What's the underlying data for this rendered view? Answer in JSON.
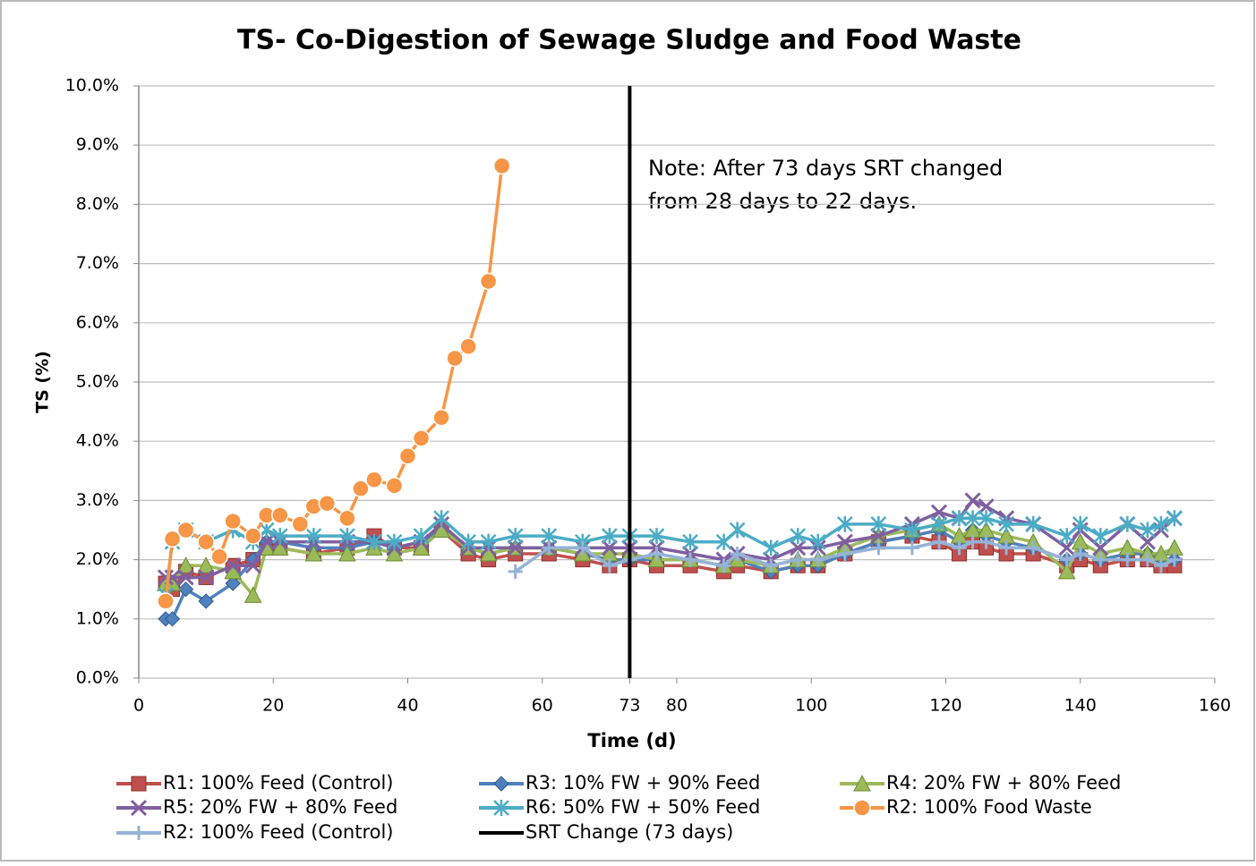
{
  "chart_data": {
    "type": "line",
    "title": "TS- Co-Digestion of Sewage Sludge and Food Waste",
    "xlabel": "Time (d)",
    "ylabel": "TS (%)",
    "annotations": [
      "Note: After 73 days SRT changed",
      "from 28 days to 22 days."
    ],
    "xlim": [
      0,
      160
    ],
    "xticks": [
      0,
      20,
      40,
      60,
      73,
      80,
      100,
      120,
      140,
      160
    ],
    "ylim": [
      0,
      10
    ],
    "yticks": [
      {
        "value": 0,
        "label": "0.0%"
      },
      {
        "value": 1,
        "label": "1.0%"
      },
      {
        "value": 2,
        "label": "2.0%"
      },
      {
        "value": 3,
        "label": "3.0%"
      },
      {
        "value": 4,
        "label": "4.0%"
      },
      {
        "value": 5,
        "label": "5.0%"
      },
      {
        "value": 6,
        "label": "6.0%"
      },
      {
        "value": 7,
        "label": "7.0%"
      },
      {
        "value": 8,
        "label": "8.0%"
      },
      {
        "value": 9,
        "label": "9.0%"
      },
      {
        "value": 10,
        "label": "10.0%"
      }
    ],
    "grid": true,
    "legend": "bottom",
    "x": [
      4,
      5,
      7,
      10,
      14,
      17,
      19,
      21,
      26,
      31,
      35,
      38,
      42,
      45,
      49,
      52,
      56,
      61,
      66,
      70,
      73,
      77,
      82,
      87,
      89,
      94,
      98,
      101,
      105,
      110,
      115,
      119,
      122,
      124,
      126,
      129,
      133,
      138,
      140,
      143,
      147,
      150,
      152,
      154
    ],
    "series": [
      {
        "name": "R1: 100% Feed (Control)",
        "color": "#c0504d",
        "marker": "square",
        "values": [
          1.6,
          1.5,
          1.8,
          1.7,
          1.9,
          2.0,
          2.2,
          2.2,
          2.1,
          2.2,
          2.4,
          2.2,
          2.2,
          2.5,
          2.1,
          2.0,
          2.1,
          2.1,
          2.0,
          1.9,
          2.0,
          1.9,
          1.9,
          1.8,
          1.9,
          1.8,
          1.9,
          1.9,
          2.1,
          2.3,
          2.4,
          2.3,
          2.1,
          2.3,
          2.2,
          2.1,
          2.1,
          1.9,
          2.0,
          1.9,
          2.0,
          2.0,
          1.9,
          1.9
        ]
      },
      {
        "name": "R3: 10% FW + 90% Feed",
        "color": "#4f81bd",
        "marker": "diamond",
        "values": [
          1.0,
          1.0,
          1.5,
          1.3,
          1.6,
          2.0,
          2.3,
          2.3,
          2.2,
          2.2,
          2.3,
          2.2,
          2.3,
          2.5,
          2.2,
          2.1,
          2.2,
          2.2,
          2.1,
          2.0,
          2.0,
          2.0,
          2.0,
          1.9,
          2.0,
          1.8,
          1.9,
          1.9,
          2.1,
          2.3,
          2.4,
          2.5,
          2.3,
          2.5,
          2.4,
          2.3,
          2.2,
          2.0,
          2.1,
          2.0,
          2.1,
          2.1,
          2.0,
          2.0
        ]
      },
      {
        "name": "R4: 20% FW + 80% Feed",
        "color": "#9bbb59",
        "marker": "triangle",
        "values": [
          1.6,
          1.6,
          1.9,
          1.9,
          1.8,
          1.4,
          2.2,
          2.2,
          2.1,
          2.1,
          2.2,
          2.1,
          2.2,
          2.5,
          2.2,
          2.1,
          2.2,
          2.2,
          2.1,
          2.1,
          2.1,
          2.0,
          2.0,
          1.9,
          2.0,
          1.9,
          2.0,
          2.0,
          2.2,
          2.4,
          2.5,
          2.6,
          2.4,
          2.5,
          2.5,
          2.4,
          2.3,
          1.8,
          2.3,
          2.1,
          2.2,
          2.1,
          2.1,
          2.2
        ]
      },
      {
        "name": "R5: 20% FW + 80% Feed",
        "color": "#7f5fa0",
        "marker": "cross",
        "values": [
          1.7,
          1.7,
          1.7,
          1.7,
          1.9,
          1.9,
          2.3,
          2.3,
          2.3,
          2.3,
          2.3,
          2.2,
          2.3,
          2.6,
          2.2,
          2.2,
          2.2,
          2.2,
          2.2,
          2.2,
          2.2,
          2.2,
          2.1,
          2.0,
          2.1,
          2.0,
          2.2,
          2.2,
          2.3,
          2.4,
          2.6,
          2.8,
          2.7,
          3.0,
          2.9,
          2.7,
          2.6,
          2.2,
          2.5,
          2.2,
          2.6,
          2.3,
          2.5,
          2.7
        ]
      },
      {
        "name": "R6: 50% FW + 50% Feed",
        "color": "#4bacc6",
        "marker": "star",
        "values": [
          1.4,
          2.3,
          2.5,
          2.3,
          2.5,
          2.3,
          2.5,
          2.4,
          2.4,
          2.4,
          2.3,
          2.3,
          2.4,
          2.7,
          2.3,
          2.3,
          2.4,
          2.4,
          2.3,
          2.4,
          2.4,
          2.4,
          2.3,
          2.3,
          2.5,
          2.2,
          2.4,
          2.3,
          2.6,
          2.6,
          2.5,
          2.6,
          2.7,
          2.7,
          2.7,
          2.6,
          2.6,
          2.4,
          2.6,
          2.4,
          2.6,
          2.5,
          2.6,
          2.7
        ]
      },
      {
        "name": "R2: 100% Food Waste",
        "color": "#f79646",
        "marker": "circle",
        "x": [
          4,
          5,
          7,
          10,
          12,
          14,
          17,
          19,
          21,
          24,
          26,
          28,
          31,
          33,
          35,
          38,
          40,
          42,
          45,
          47,
          49,
          52,
          54
        ],
        "values": [
          1.3,
          2.35,
          2.5,
          2.3,
          2.05,
          2.65,
          2.4,
          2.75,
          2.75,
          2.6,
          2.9,
          2.95,
          2.7,
          3.2,
          3.35,
          3.25,
          3.75,
          4.05,
          4.4,
          5.4,
          5.6,
          6.7,
          8.65
        ]
      },
      {
        "name": "R2: 100% Feed (Control)",
        "color": "#95b3d7",
        "marker": "plus",
        "x": [
          56,
          61,
          66,
          70,
          73,
          77,
          82,
          87,
          89,
          94,
          98,
          101,
          105,
          110,
          115,
          119,
          122,
          124,
          126,
          129,
          133,
          138,
          140,
          143,
          147,
          150,
          152,
          154
        ],
        "values": [
          1.8,
          2.2,
          2.2,
          1.9,
          2.0,
          2.1,
          2.0,
          1.9,
          2.1,
          1.9,
          2.0,
          2.0,
          2.1,
          2.2,
          2.2,
          2.3,
          2.2,
          2.3,
          2.3,
          2.2,
          2.2,
          2.0,
          2.1,
          2.0,
          2.0,
          2.0,
          1.9,
          2.0
        ]
      },
      {
        "name": "SRT Change (73 days)",
        "color": "#000000",
        "marker": "none",
        "x": [
          73,
          73
        ],
        "values": [
          0,
          10
        ]
      }
    ]
  }
}
